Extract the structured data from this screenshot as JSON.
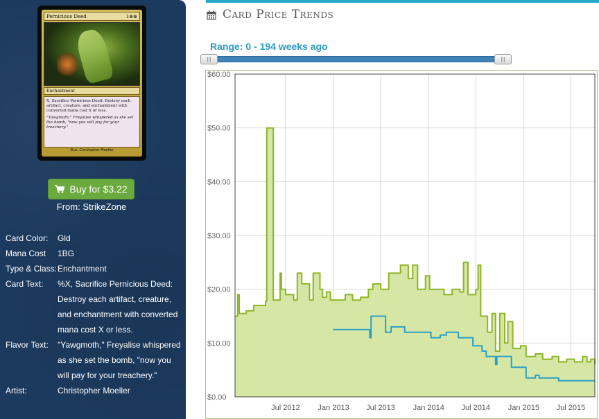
{
  "card": {
    "name": "Pernicious Deed",
    "mana_symbols": "1⊕⊕",
    "type_line": "Enchantment",
    "rules_text": "X, Sacrifice Pernicious Deed: Destroy each artifact, creature, and enchantment with converted mana cost X or less.",
    "flavor_text": "\"Yawgmoth,\" Freyalise whispered as she set the bomb, \"now you will pay for your treachery.\"",
    "footer": "Illus. Christopher Moeller"
  },
  "buy": {
    "label": "Buy for $3.22",
    "icon": "cart-icon",
    "from": "From: StrikeZone",
    "color": "#6aaa3e"
  },
  "details": [
    {
      "label": "Card Color:",
      "value": "Gld"
    },
    {
      "label": "Mana Cost",
      "value": "1BG"
    },
    {
      "label": "Type & Class:",
      "value": "Enchantment"
    },
    {
      "label": "Card Text:",
      "value": "%X, Sacrifice Pernicious Deed: Destroy each artifact, creature, and enchantment with converted mana cost X or less."
    },
    {
      "label": "Flavor Text:",
      "value": "\"Yawgmoth,\" Freyalise whispered as she set the bomb, \"now you will pay for your treachery.\""
    },
    {
      "label": "Artist:",
      "value": "Christopher Moeller"
    }
  ],
  "section": {
    "title": "Card Price Trends",
    "icon": "calendar-icon",
    "accent": "#25a7c9"
  },
  "range": {
    "label": "Range: 0 - 194 weeks ago",
    "handle_grip": "|||",
    "min_weeks": 0,
    "max_weeks": 194
  },
  "chart_data": {
    "type": "area",
    "title": "",
    "xlabel": "",
    "ylabel": "",
    "x_ticks": [
      "Jul 2012",
      "Jan 2013",
      "Jul 2013",
      "Jan 2014",
      "Jul 2014",
      "Jan 2015",
      "Jul 2015"
    ],
    "y_ticks": [
      "$0.00",
      "$10.00",
      "$20.00",
      "$30.00",
      "$40.00",
      "$50.00",
      "$60.00"
    ],
    "ylim": [
      0,
      60
    ],
    "xlim": [
      "2011-12-20",
      "2015-10-01"
    ],
    "grid": true,
    "series": [
      {
        "color": "#8db526",
        "fill": "#d3e5a0",
        "points": [
          [
            "2011-12-20",
            15.0
          ],
          [
            "2011-12-30",
            19.0
          ],
          [
            "2012-01-05",
            15.5
          ],
          [
            "2012-02-01",
            16.0
          ],
          [
            "2012-03-01",
            17.0
          ],
          [
            "2012-04-15",
            17.8
          ],
          [
            "2012-04-20",
            50.0
          ],
          [
            "2012-05-10",
            50.0
          ],
          [
            "2012-05-15",
            18.0
          ],
          [
            "2012-06-01",
            18.0
          ],
          [
            "2012-06-10",
            23.0
          ],
          [
            "2012-06-15",
            20.0
          ],
          [
            "2012-07-01",
            19.0
          ],
          [
            "2012-08-01",
            18.0
          ],
          [
            "2012-08-15",
            23.0
          ],
          [
            "2012-09-01",
            21.0
          ],
          [
            "2012-10-01",
            18.0
          ],
          [
            "2012-10-15",
            23.0
          ],
          [
            "2012-11-10",
            20.0
          ],
          [
            "2012-11-20",
            18.5
          ],
          [
            "2012-12-05",
            19.5
          ],
          [
            "2012-12-20",
            18.0
          ],
          [
            "2013-01-15",
            18.0
          ],
          [
            "2013-02-15",
            19.0
          ],
          [
            "2013-03-15",
            18.0
          ],
          [
            "2013-04-15",
            18.5
          ],
          [
            "2013-05-15",
            20.0
          ],
          [
            "2013-06-01",
            21.0
          ],
          [
            "2013-07-01",
            20.0
          ],
          [
            "2013-08-01",
            23.0
          ],
          [
            "2013-09-15",
            24.5
          ],
          [
            "2013-10-15",
            22.0
          ],
          [
            "2013-11-01",
            24.5
          ],
          [
            "2013-11-20",
            20.0
          ],
          [
            "2013-12-20",
            22.5
          ],
          [
            "2014-01-05",
            20.0
          ],
          [
            "2014-02-15",
            20.0
          ],
          [
            "2014-03-01",
            19.0
          ],
          [
            "2014-04-01",
            20.0
          ],
          [
            "2014-05-01",
            19.5
          ],
          [
            "2014-05-15",
            25.0
          ],
          [
            "2014-06-01",
            19.0
          ],
          [
            "2014-07-01",
            20.0
          ],
          [
            "2014-07-10",
            24.5
          ],
          [
            "2014-07-20",
            15.0
          ],
          [
            "2014-08-15",
            12.0
          ],
          [
            "2014-09-01",
            15.5
          ],
          [
            "2014-09-15",
            8.5
          ],
          [
            "2014-10-01",
            15.5
          ],
          [
            "2014-10-20",
            10.0
          ],
          [
            "2014-11-01",
            14.0
          ],
          [
            "2014-11-20",
            9.0
          ],
          [
            "2014-12-20",
            9.5
          ],
          [
            "2015-01-10",
            7.5
          ],
          [
            "2015-02-15",
            8.0
          ],
          [
            "2015-03-15",
            7.0
          ],
          [
            "2015-04-20",
            7.5
          ],
          [
            "2015-05-15",
            6.5
          ],
          [
            "2015-06-15",
            7.0
          ],
          [
            "2015-07-15",
            6.5
          ],
          [
            "2015-08-15",
            7.5
          ],
          [
            "2015-09-01",
            6.5
          ],
          [
            "2015-09-15",
            7.0
          ],
          [
            "2015-10-01",
            6.0
          ]
        ]
      },
      {
        "color": "#2ba0c6",
        "fill": "none",
        "points": [
          [
            "2012-12-30",
            12.5
          ],
          [
            "2013-05-15",
            12.5
          ],
          [
            "2013-05-20",
            11.0
          ],
          [
            "2013-05-25",
            15.0
          ],
          [
            "2013-07-15",
            15.0
          ],
          [
            "2013-07-20",
            12.0
          ],
          [
            "2013-08-10",
            13.0
          ],
          [
            "2013-10-01",
            12.0
          ],
          [
            "2014-01-05",
            12.0
          ],
          [
            "2014-01-10",
            11.0
          ],
          [
            "2014-02-15",
            11.5
          ],
          [
            "2014-03-10",
            12.0
          ],
          [
            "2014-04-20",
            12.0
          ],
          [
            "2014-04-25",
            11.0
          ],
          [
            "2014-06-10",
            11.0
          ],
          [
            "2014-06-20",
            9.5
          ],
          [
            "2014-07-20",
            9.5
          ],
          [
            "2014-07-25",
            8.5
          ],
          [
            "2014-08-10",
            7.5
          ],
          [
            "2014-09-10",
            7.5
          ],
          [
            "2014-09-15",
            6.0
          ],
          [
            "2014-09-20",
            7.5
          ],
          [
            "2014-11-10",
            7.5
          ],
          [
            "2014-11-15",
            5.5
          ],
          [
            "2015-01-05",
            5.5
          ],
          [
            "2015-01-10",
            3.5
          ],
          [
            "2015-02-15",
            4.0
          ],
          [
            "2015-03-01",
            3.5
          ],
          [
            "2015-05-15",
            3.0
          ],
          [
            "2015-10-01",
            3.0
          ]
        ]
      }
    ]
  }
}
